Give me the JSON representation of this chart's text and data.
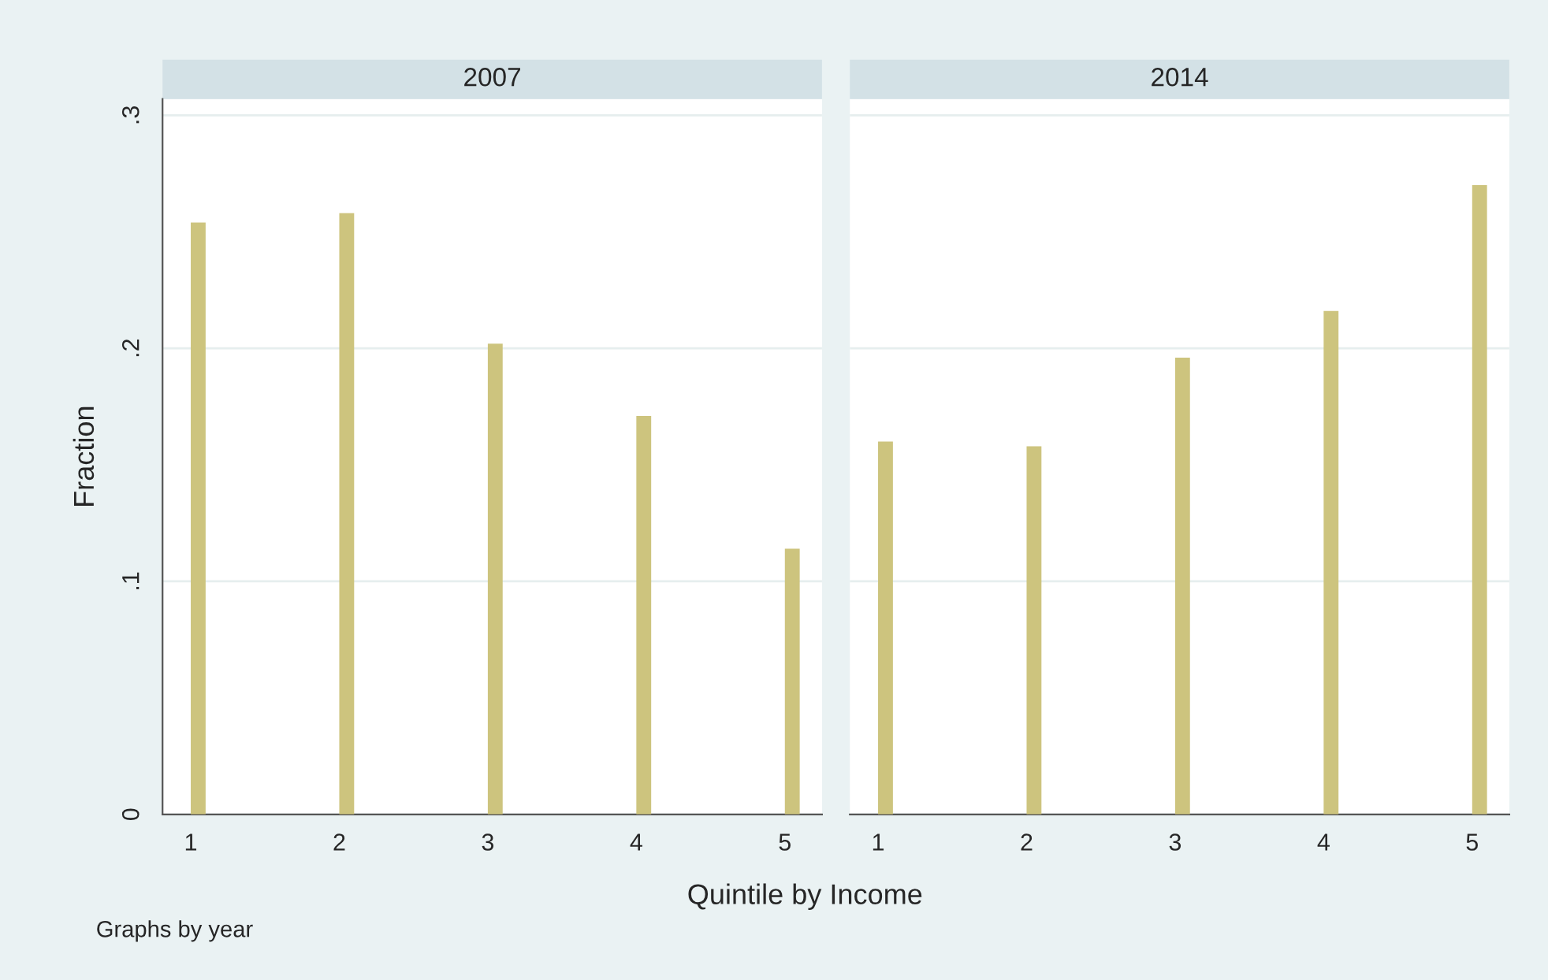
{
  "chart_data": [
    {
      "type": "bar",
      "title": "2007",
      "ylabel": "Fraction",
      "xlabel": "Quintile by Income",
      "x": [
        1,
        2,
        3,
        4,
        5
      ],
      "series": [
        {
          "color": "#cdc47e",
          "values": [
            0.254,
            0.258,
            0.202,
            0.171,
            0.114
          ]
        }
      ],
      "xlim": [
        0.81,
        5.25
      ],
      "xticks": [
        1,
        2,
        3,
        4,
        5
      ],
      "ylim": [
        0,
        0.307
      ],
      "yticks": [
        0,
        {
          "value": 0.1,
          "label": ".1"
        },
        {
          "value": 0.2,
          "label": ".2"
        },
        {
          "value": 0.3,
          "label": ".3"
        }
      ],
      "grid": "y",
      "annotations": [
        "Graphs by year"
      ]
    },
    {
      "type": "bar",
      "title": "2014",
      "x": [
        1,
        2,
        3,
        4,
        5
      ],
      "series": [
        {
          "color": "#cdc47e",
          "values": [
            0.16,
            0.158,
            0.196,
            0.216,
            0.27
          ]
        }
      ],
      "xlim": [
        0.81,
        5.25
      ],
      "xticks": [
        1,
        2,
        3,
        4,
        5
      ],
      "ylim": [
        0,
        0.307
      ],
      "yticks": [
        {
          "value": 0,
          "label": null
        },
        {
          "value": 0.1,
          "label": null
        },
        {
          "value": 0.2,
          "label": null
        },
        {
          "value": 0.3,
          "label": null
        }
      ],
      "grid": "y",
      "tick_labels": "x"
    }
  ]
}
